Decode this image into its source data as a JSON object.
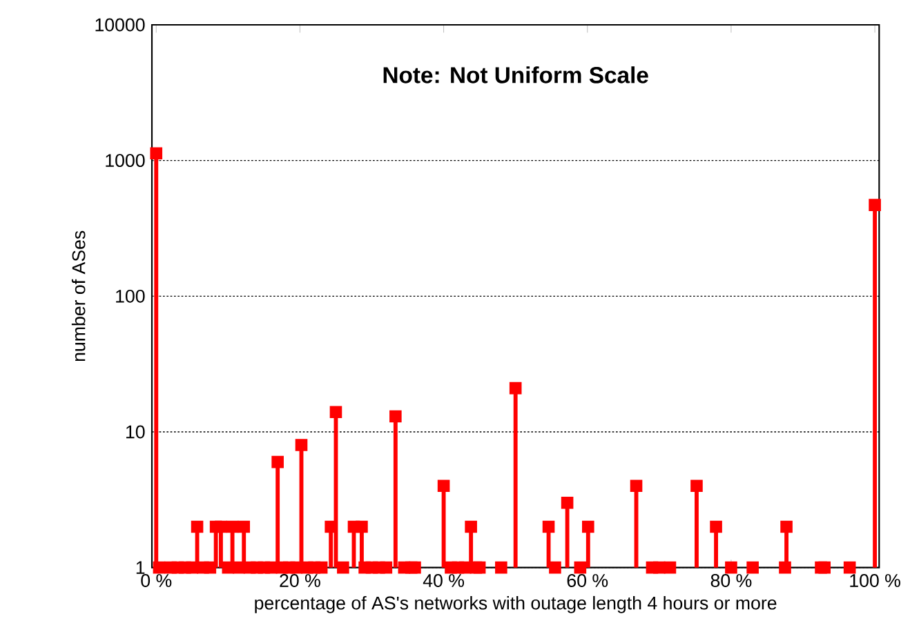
{
  "chart_data": {
    "type": "lollipop",
    "title": "Note: Not Uniform Scale",
    "xlabel": "percentage of AS's networks with outage length 4 hours or more",
    "ylabel": "number of ASes",
    "x": [
      0,
      0.4,
      2,
      3,
      4,
      5,
      5.7,
      6.5,
      7.5,
      8.3,
      9.0,
      10,
      10.6,
      11.5,
      12.2,
      13,
      14,
      15,
      16,
      16.9,
      17.5,
      18.5,
      19.5,
      20.2,
      21,
      22,
      23,
      24.3,
      25,
      26,
      27.5,
      28.6,
      29,
      30,
      31,
      32,
      33.3,
      34.5,
      35.5,
      36,
      40,
      41,
      42,
      43,
      43.8,
      44.5,
      45,
      48,
      50,
      54.6,
      55.5,
      57.2,
      59,
      60.1,
      66.8,
      69,
      70,
      71.5,
      75.2,
      77.9,
      80,
      83,
      87.5,
      87.7,
      92.5,
      93,
      96.5,
      100
    ],
    "values": [
      1130,
      1,
      1,
      1,
      1,
      1,
      2,
      1,
      1,
      2,
      2,
      1,
      2,
      1,
      2,
      1,
      1,
      1,
      1,
      6,
      1,
      1,
      1,
      8,
      1,
      1,
      1,
      2,
      14,
      1,
      2,
      2,
      1,
      1,
      1,
      1,
      13,
      1,
      1,
      1,
      4,
      1,
      1,
      1,
      2,
      1,
      1,
      1,
      21,
      2,
      1,
      3,
      1,
      2,
      4,
      1,
      1,
      1,
      4,
      2,
      1,
      1,
      1,
      2,
      1,
      1,
      1,
      470
    ],
    "color": "#ff0000",
    "marker": "square",
    "log": "y",
    "grid": "y",
    "xlim": [
      -0.6,
      100.6
    ],
    "ylim": [
      1,
      10000
    ],
    "xticks": [
      {
        "value": 0,
        "label": "0 %"
      },
      {
        "value": 20,
        "label": "20 %"
      },
      {
        "value": 40,
        "label": "40 %"
      },
      {
        "value": 60,
        "label": "60 %"
      },
      {
        "value": 80,
        "label": "80 %"
      },
      {
        "value": 100,
        "label": "100 %"
      }
    ],
    "yticks": [
      1,
      10,
      100,
      1000,
      10000
    ]
  }
}
